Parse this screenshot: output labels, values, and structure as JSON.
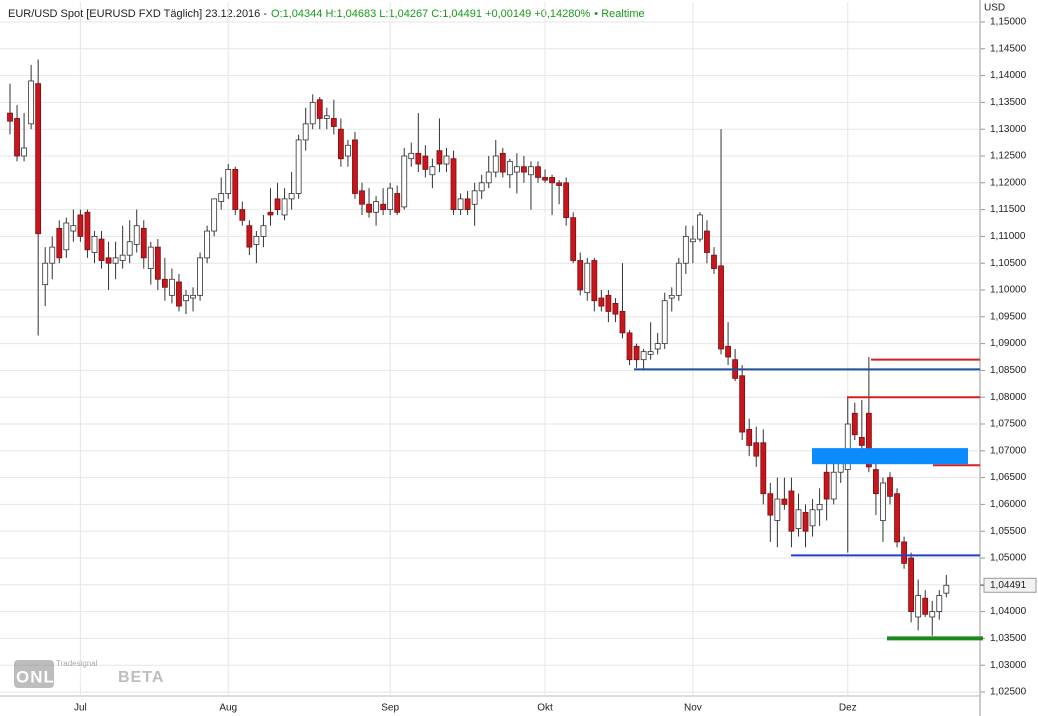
{
  "chart_data": {
    "type": "candlestick",
    "title": "EUR/USD Spot [EURUSD FXD Täglich] 23.12.2016 -",
    "quote": "O:1,04344 H:1,04683 L:1,04267 C:1,04491 +0,00149 +0,14280%",
    "realtime": "• Realtime",
    "unit": "USD",
    "logo": {
      "brand": "Tradesignal",
      "name": "ONLINE",
      "tag": "BETA"
    },
    "categories": [
      null,
      null,
      null,
      null,
      null,
      null,
      null,
      null,
      null,
      null,
      "Jul",
      null,
      null,
      null,
      null,
      null,
      null,
      null,
      null,
      null,
      null,
      null,
      null,
      null,
      null,
      null,
      null,
      null,
      null,
      null,
      null,
      "Aug",
      null,
      null,
      null,
      null,
      null,
      null,
      null,
      null,
      null,
      null,
      null,
      null,
      null,
      null,
      null,
      null,
      null,
      null,
      null,
      null,
      null,
      null,
      "Sep",
      null,
      null,
      null,
      null,
      null,
      null,
      null,
      null,
      null,
      null,
      null,
      null,
      null,
      null,
      null,
      null,
      null,
      null,
      null,
      null,
      null,
      "Okt",
      null,
      null,
      null,
      null,
      null,
      null,
      null,
      null,
      null,
      null,
      null,
      null,
      null,
      null,
      null,
      null,
      null,
      null,
      null,
      null,
      "Nov",
      null,
      null,
      null,
      null,
      null,
      null,
      null,
      null,
      null,
      null,
      null,
      null,
      null,
      null,
      null,
      null,
      null,
      null,
      null,
      null,
      null,
      "Dez",
      null,
      null,
      null,
      null,
      null,
      null,
      null,
      null,
      null,
      null,
      null,
      null,
      null,
      null
    ],
    "open": [
      1.133,
      1.132,
      1.125,
      1.131,
      1.1385,
      1.101,
      1.105,
      1.1115,
      1.1075,
      1.111,
      1.114,
      1.1145,
      1.107,
      1.1095,
      1.106,
      1.105,
      1.1055,
      1.1065,
      1.1085,
      1.1115,
      1.104,
      1.108,
      1.102,
      1.099,
      1.1015,
      1.098,
      1.0985,
      1.099,
      1.106,
      1.111,
      1.1165,
      1.118,
      1.1225,
      1.115,
      1.112,
      1.1085,
      1.11,
      1.1145,
      1.117,
      1.114,
      1.117,
      1.118,
      1.128,
      1.131,
      1.1355,
      1.132,
      1.132,
      1.13,
      1.125,
      1.128,
      1.1185,
      1.116,
      1.1145,
      1.116,
      1.115,
      1.118,
      1.1155,
      1.1245,
      1.1255,
      1.125,
      1.1215,
      1.126,
      1.1235,
      1.1245,
      1.115,
      1.117,
      1.116,
      1.1185,
      1.12,
      1.122,
      1.1255,
      1.1215,
      1.122,
      1.123,
      1.1215,
      1.123,
      1.121,
      1.121,
      1.12,
      1.12,
      1.1135,
      1.1055,
      1.0995,
      1.1055,
      1.0985,
      1.099,
      1.0975,
      1.096,
      1.092,
      1.0895,
      1.087,
      1.088,
      1.089,
      1.09,
      1.0985,
      1.099,
      1.105,
      1.109,
      1.1095,
      1.111,
      1.1065,
      1.1045,
      1.0895,
      1.087,
      1.084,
      1.074,
      1.0715,
      1.0715,
      1.062,
      1.057,
      1.061,
      1.0625,
      1.0555,
      1.0585,
      1.056,
      1.059,
      1.066,
      1.061,
      1.066,
      1.0665,
      1.077,
      1.0725,
      1.077,
      1.0665,
      1.057,
      1.065,
      1.062,
      1.053,
      1.05,
      1.039,
      1.0425,
      1.039,
      1.04,
      1.04344
    ],
    "high": [
      1.1385,
      1.1345,
      1.133,
      1.142,
      1.143,
      1.108,
      1.11,
      1.113,
      1.1135,
      1.115,
      1.115,
      1.115,
      1.111,
      1.111,
      1.109,
      1.109,
      1.112,
      1.113,
      1.115,
      1.113,
      1.109,
      1.1095,
      1.106,
      1.104,
      1.103,
      1.1,
      1.1005,
      1.107,
      1.112,
      1.117,
      1.121,
      1.1235,
      1.123,
      1.1165,
      1.113,
      1.111,
      1.114,
      1.119,
      1.12,
      1.119,
      1.122,
      1.129,
      1.134,
      1.1365,
      1.136,
      1.134,
      1.1355,
      1.132,
      1.128,
      1.1295,
      1.12,
      1.119,
      1.1175,
      1.119,
      1.12,
      1.1195,
      1.1265,
      1.1275,
      1.133,
      1.127,
      1.1245,
      1.132,
      1.1265,
      1.126,
      1.118,
      1.1185,
      1.12,
      1.1215,
      1.125,
      1.128,
      1.1265,
      1.1245,
      1.1255,
      1.125,
      1.124,
      1.124,
      1.1225,
      1.1215,
      1.1205,
      1.121,
      1.1145,
      1.107,
      1.106,
      1.106,
      1.1,
      1.1,
      1.0985,
      1.105,
      1.0925,
      1.09,
      1.089,
      1.094,
      1.092,
      1.0995,
      1.1005,
      1.106,
      1.112,
      1.112,
      1.1145,
      1.113,
      1.108,
      1.13,
      1.094,
      1.089,
      1.086,
      1.076,
      1.0745,
      1.074,
      1.064,
      1.065,
      1.065,
      1.065,
      1.062,
      1.06,
      1.061,
      1.063,
      1.069,
      1.068,
      1.07,
      1.08,
      1.079,
      1.0795,
      1.0875,
      1.068,
      1.065,
      1.066,
      1.063,
      1.054,
      1.051,
      1.046,
      1.044,
      1.042,
      1.044,
      1.04683
    ],
    "low": [
      1.129,
      1.124,
      1.124,
      1.13,
      1.0915,
      1.097,
      1.102,
      1.105,
      1.106,
      1.109,
      1.109,
      1.106,
      1.105,
      1.104,
      1.1,
      1.102,
      1.104,
      1.105,
      1.107,
      1.104,
      1.101,
      1.1,
      1.098,
      1.0975,
      1.096,
      1.0955,
      1.096,
      1.098,
      1.105,
      1.11,
      1.115,
      1.117,
      1.114,
      1.112,
      1.1065,
      1.105,
      1.108,
      1.112,
      1.114,
      1.113,
      1.115,
      1.117,
      1.126,
      1.13,
      1.13,
      1.13,
      1.129,
      1.123,
      1.123,
      1.117,
      1.114,
      1.1135,
      1.112,
      1.114,
      1.114,
      1.114,
      1.115,
      1.123,
      1.122,
      1.121,
      1.119,
      1.122,
      1.122,
      1.114,
      1.114,
      1.114,
      1.112,
      1.117,
      1.119,
      1.121,
      1.121,
      1.119,
      1.118,
      1.12,
      1.115,
      1.12,
      1.12,
      1.114,
      1.116,
      1.112,
      1.105,
      1.099,
      1.098,
      1.096,
      1.096,
      1.094,
      1.094,
      1.091,
      1.086,
      1.0855,
      1.085,
      1.087,
      1.088,
      1.089,
      1.096,
      1.098,
      1.103,
      1.105,
      1.109,
      1.105,
      1.103,
      1.088,
      1.086,
      1.083,
      1.072,
      1.069,
      1.067,
      1.06,
      1.053,
      1.052,
      1.059,
      1.052,
      1.054,
      1.052,
      1.054,
      1.056,
      1.057,
      1.06,
      1.064,
      1.051,
      1.072,
      1.07,
      1.066,
      1.058,
      1.053,
      1.06,
      1.052,
      1.048,
      1.038,
      1.0365,
      1.039,
      1.0355,
      1.0385,
      1.04267
    ],
    "close": [
      1.1315,
      1.125,
      1.1265,
      1.139,
      1.1105,
      1.105,
      1.108,
      1.106,
      1.1125,
      1.112,
      1.11,
      1.1075,
      1.11,
      1.1055,
      1.105,
      1.106,
      1.1065,
      1.109,
      1.112,
      1.106,
      1.108,
      1.102,
      1.1005,
      1.102,
      1.097,
      1.099,
      1.099,
      1.106,
      1.111,
      1.117,
      1.118,
      1.1225,
      1.115,
      1.113,
      1.108,
      1.11,
      1.112,
      1.114,
      1.115,
      1.117,
      1.118,
      1.128,
      1.131,
      1.135,
      1.132,
      1.1325,
      1.1305,
      1.1245,
      1.127,
      1.118,
      1.116,
      1.1145,
      1.1165,
      1.115,
      1.119,
      1.1145,
      1.125,
      1.1255,
      1.1235,
      1.1225,
      1.123,
      1.1235,
      1.125,
      1.115,
      1.117,
      1.115,
      1.1185,
      1.12,
      1.122,
      1.125,
      1.122,
      1.124,
      1.123,
      1.122,
      1.123,
      1.121,
      1.1205,
      1.12,
      1.1195,
      1.1135,
      1.1055,
      1.1,
      1.105,
      1.098,
      1.097,
      1.096,
      1.0955,
      1.092,
      1.087,
      1.087,
      1.0885,
      1.0885,
      1.09,
      1.098,
      1.099,
      1.105,
      1.11,
      1.1095,
      1.114,
      1.107,
      1.104,
      1.089,
      1.0875,
      1.0835,
      1.0735,
      1.071,
      1.069,
      1.062,
      1.058,
      1.061,
      1.06,
      1.055,
      1.059,
      1.055,
      1.059,
      1.06,
      1.061,
      1.066,
      1.069,
      1.075,
      1.073,
      1.071,
      1.067,
      1.062,
      1.064,
      1.0615,
      1.053,
      1.049,
      1.04,
      1.043,
      1.0395,
      1.04,
      1.043,
      1.04491
    ],
    "up_color": "#ffffff",
    "down_color": "#c8161d",
    "last_price": {
      "value": 1.04491,
      "label": "1,04491"
    },
    "levels": [
      {
        "value": 1.0852,
        "color": "#1f4e9c"
      },
      {
        "value": 1.087,
        "color": "#d62020"
      },
      {
        "value": 1.08,
        "color": "#d62020"
      },
      {
        "value": 1.0673,
        "color": "#d62020"
      },
      {
        "value": 1.0505,
        "color": "#2340c8"
      },
      {
        "value": 1.035,
        "color": "#1a8a1a"
      }
    ],
    "zone": {
      "from": 1.0675,
      "to": 1.0705,
      "color": "#0a8cff"
    },
    "ylim": [
      1.025,
      1.15
    ],
    "yticks": [
      {
        "value": 1.025,
        "label": "1,02500"
      },
      {
        "value": 1.03,
        "label": "1,03000"
      },
      {
        "value": 1.035,
        "label": "1,03500"
      },
      {
        "value": 1.04,
        "label": "1,04000"
      },
      {
        "value": 1.045,
        "label": "1,04500"
      },
      {
        "value": 1.05,
        "label": "1,05000"
      },
      {
        "value": 1.055,
        "label": "1,05500"
      },
      {
        "value": 1.06,
        "label": "1,06000"
      },
      {
        "value": 1.065,
        "label": "1,06500"
      },
      {
        "value": 1.07,
        "label": "1,07000"
      },
      {
        "value": 1.075,
        "label": "1,07500"
      },
      {
        "value": 1.08,
        "label": "1,08000"
      },
      {
        "value": 1.085,
        "label": "1,08500"
      },
      {
        "value": 1.09,
        "label": "1,09000"
      },
      {
        "value": 1.095,
        "label": "1,09500"
      },
      {
        "value": 1.1,
        "label": "1,10000"
      },
      {
        "value": 1.105,
        "label": "1,10500"
      },
      {
        "value": 1.11,
        "label": "1,11000"
      },
      {
        "value": 1.115,
        "label": "1,11500"
      },
      {
        "value": 1.12,
        "label": "1,12000"
      },
      {
        "value": 1.125,
        "label": "1,12500"
      },
      {
        "value": 1.13,
        "label": "1,13000"
      },
      {
        "value": 1.135,
        "label": "1,13500"
      },
      {
        "value": 1.14,
        "label": "1,14000"
      },
      {
        "value": 1.145,
        "label": "1,14500"
      },
      {
        "value": 1.15,
        "label": "1,15000"
      }
    ],
    "grid": true
  }
}
